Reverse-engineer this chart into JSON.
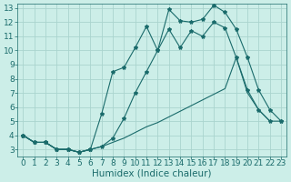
{
  "bg_color": "#cceee8",
  "grid_color": "#aad4ce",
  "line_color": "#1a6b6b",
  "xlabel": "Humidex (Indice chaleur)",
  "xlim": [
    -0.5,
    23.5
  ],
  "ylim": [
    2.5,
    13.3
  ],
  "xticks": [
    0,
    1,
    2,
    3,
    4,
    5,
    6,
    7,
    8,
    9,
    10,
    11,
    12,
    13,
    14,
    15,
    16,
    17,
    18,
    19,
    20,
    21,
    22,
    23
  ],
  "yticks": [
    3,
    4,
    5,
    6,
    7,
    8,
    9,
    10,
    11,
    12,
    13
  ],
  "xlabel_fontsize": 7.5,
  "tick_fontsize": 6.5,
  "line_width": 0.8,
  "marker_size": 3.0,
  "series": [
    {
      "x": [
        0,
        1,
        2,
        3,
        4,
        5,
        6
      ],
      "y": [
        4.0,
        3.5,
        3.5,
        3.0,
        3.0,
        2.8,
        3.0
      ],
      "has_markers": true
    },
    {
      "x": [
        0,
        1,
        2,
        3,
        4,
        5,
        6,
        7,
        8,
        9,
        10,
        11,
        12,
        13,
        14,
        15,
        16,
        17,
        18,
        19,
        20,
        21,
        22
      ],
      "y": [
        4.0,
        3.5,
        3.5,
        3.0,
        3.0,
        2.8,
        3.0,
        3.2,
        3.5,
        3.8,
        4.2,
        4.6,
        4.9,
        5.3,
        5.7,
        6.1,
        6.5,
        6.9,
        7.3,
        9.5,
        7.0,
        5.8,
        5.0
      ],
      "has_markers": false
    },
    {
      "x": [
        0,
        1,
        2,
        3,
        4,
        5,
        6,
        7,
        8,
        9,
        10,
        11,
        12,
        13,
        14,
        15,
        16,
        17,
        18,
        19,
        20,
        21,
        22,
        23
      ],
      "y": [
        4.0,
        3.5,
        3.5,
        3.0,
        3.0,
        2.8,
        3.0,
        3.2,
        3.8,
        5.2,
        7.0,
        8.5,
        10.0,
        11.5,
        10.2,
        11.4,
        11.0,
        12.0,
        11.6,
        9.5,
        7.2,
        5.8,
        5.0,
        5.0
      ],
      "has_markers": true
    },
    {
      "x": [
        0,
        1,
        2,
        3,
        4,
        5,
        6,
        7,
        8,
        9,
        10,
        11,
        12,
        13,
        14,
        15,
        16,
        17,
        18,
        19,
        20,
        21,
        22,
        23
      ],
      "y": [
        4.0,
        3.5,
        3.5,
        3.0,
        3.0,
        2.8,
        3.0,
        5.5,
        8.5,
        8.8,
        10.2,
        11.7,
        10.0,
        12.9,
        12.1,
        12.0,
        12.2,
        13.2,
        12.7,
        11.5,
        9.5,
        7.2,
        5.8,
        5.0
      ],
      "has_markers": true
    }
  ]
}
